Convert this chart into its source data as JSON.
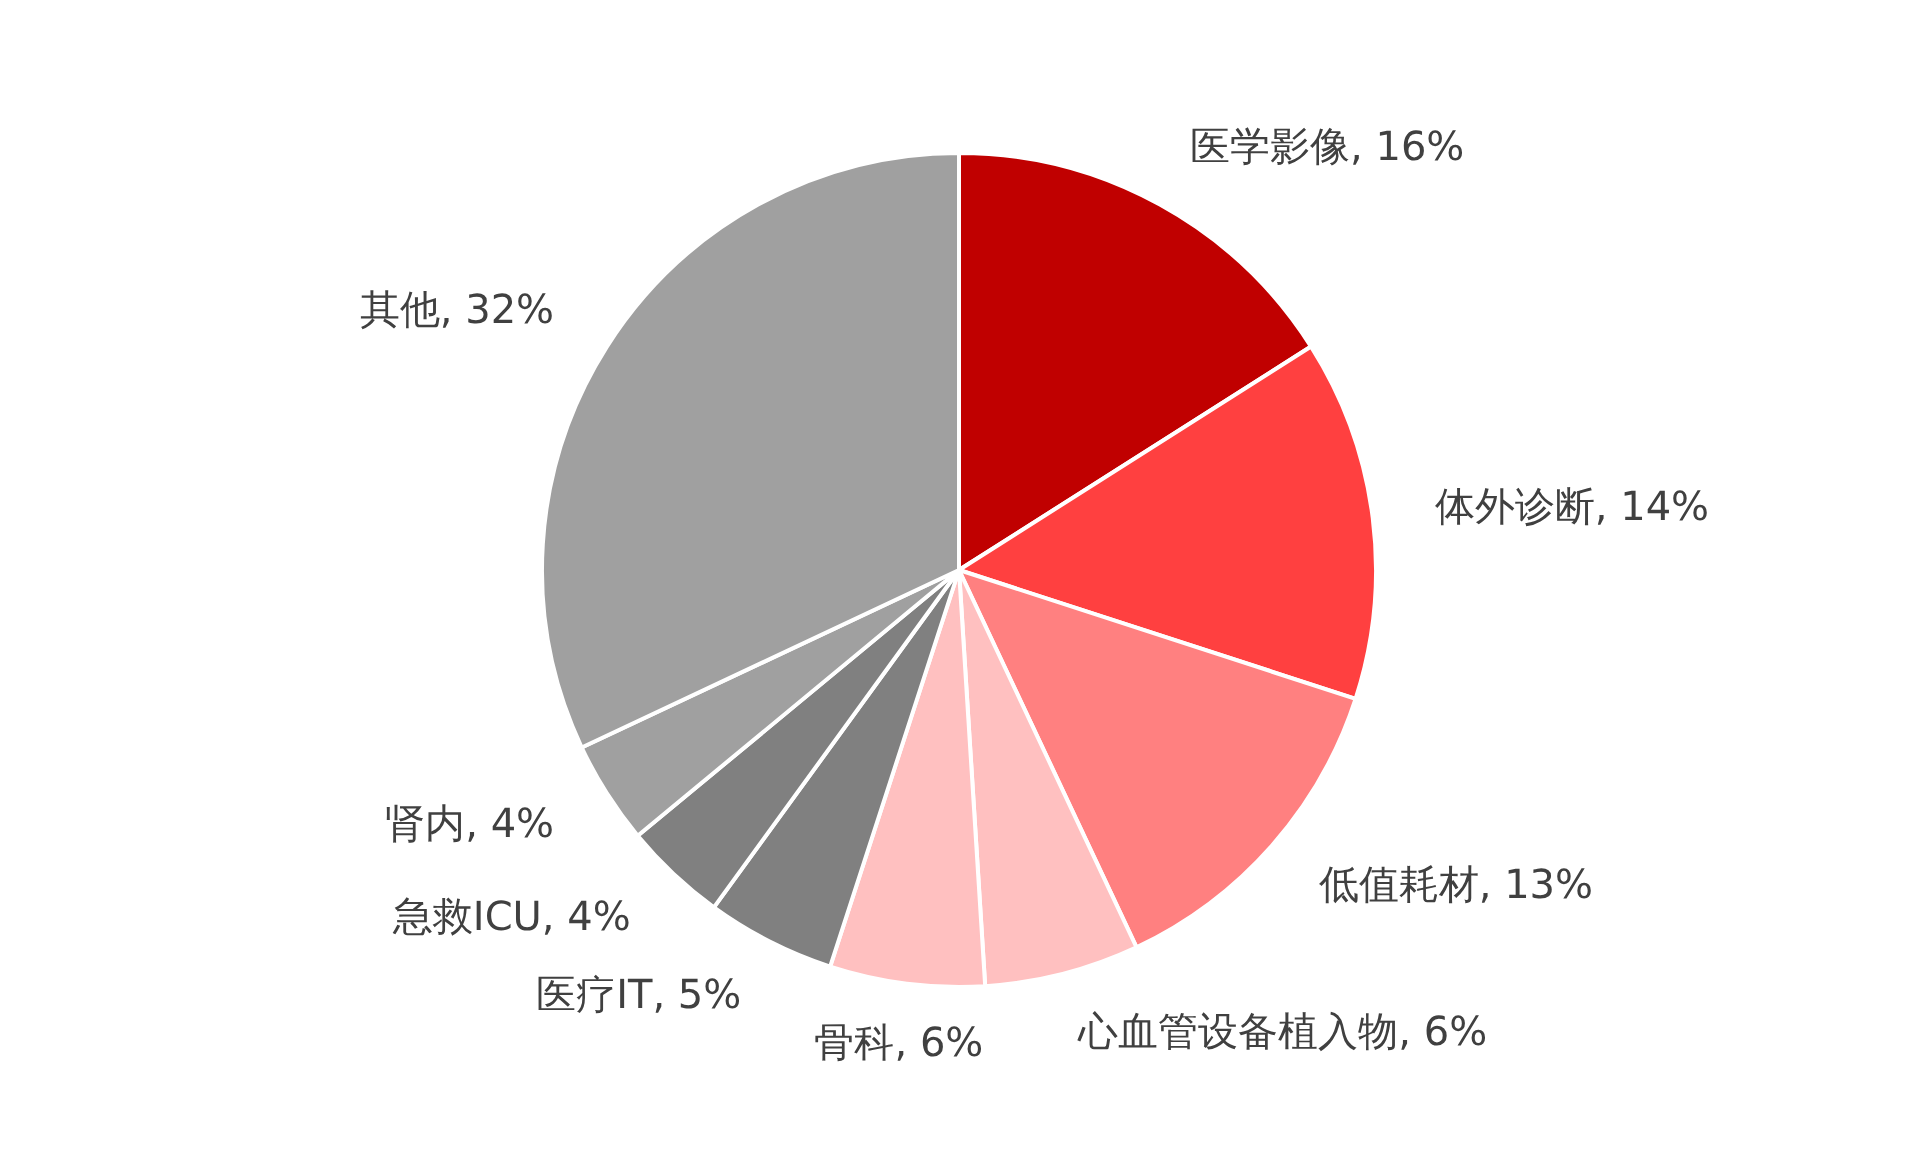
{
  "chart_data": {
    "type": "pie",
    "categories": [
      "医学影像",
      "体外诊断",
      "低值耗材",
      "心血管设备植入物",
      "骨科",
      "医疗IT",
      "急救ICU",
      "肾内",
      "其他"
    ],
    "values": [
      16,
      14,
      13,
      6,
      6,
      5,
      4,
      4,
      32
    ],
    "colors": [
      "#c00000",
      "#ff4040",
      "#ff8080",
      "#ffc0c0",
      "#ffc0c0",
      "#808080",
      "#808080",
      "#a0a0a0",
      "#a0a0a0"
    ],
    "value_labels": [
      ", 16%",
      ", 14%",
      ", 13%",
      ", 6%",
      ", 6%",
      ", 5%",
      ", 4%",
      ", 4%",
      ", 32%"
    ],
    "legend": false
  }
}
